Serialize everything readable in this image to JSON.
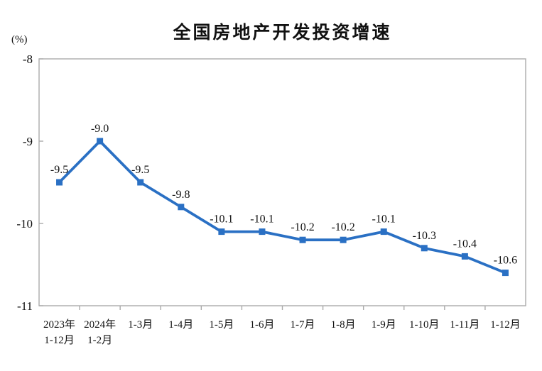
{
  "chart_data": {
    "type": "line",
    "title": "全国房地产开发投资增速",
    "unit": "(%)",
    "categories": [
      [
        "2023年",
        "1-12月"
      ],
      [
        "2024年",
        "1-2月"
      ],
      [
        "1-3月"
      ],
      [
        "1-4月"
      ],
      [
        "1-5月"
      ],
      [
        "1-6月"
      ],
      [
        "1-7月"
      ],
      [
        "1-8月"
      ],
      [
        "1-9月"
      ],
      [
        "1-10月"
      ],
      [
        "1-11月"
      ],
      [
        "1-12月"
      ]
    ],
    "values": [
      -9.5,
      -9.0,
      -9.5,
      -9.8,
      -10.1,
      -10.1,
      -10.2,
      -10.2,
      -10.1,
      -10.3,
      -10.4,
      -10.6
    ],
    "data_labels": [
      "-9.5",
      "-9.0",
      "-9.5",
      "-9.8",
      "-10.1",
      "-10.1",
      "-10.2",
      "-10.2",
      "-10.1",
      "-10.3",
      "-10.4",
      "-10.6"
    ],
    "ylim": [
      -11,
      -8
    ],
    "yticks": [
      -8,
      -9,
      -10,
      -11
    ],
    "ytick_labels": [
      "-8",
      "-9",
      "-10",
      "-11"
    ],
    "xlabel": "",
    "ylabel": "(%)",
    "grid": false,
    "legend": "none",
    "line_color": "#2A70C4",
    "marker": "square",
    "marker_color": "#2A70C4",
    "axis_color": "#ABABAB",
    "label_color": "#111111",
    "background_color": "#FFFFFF"
  }
}
